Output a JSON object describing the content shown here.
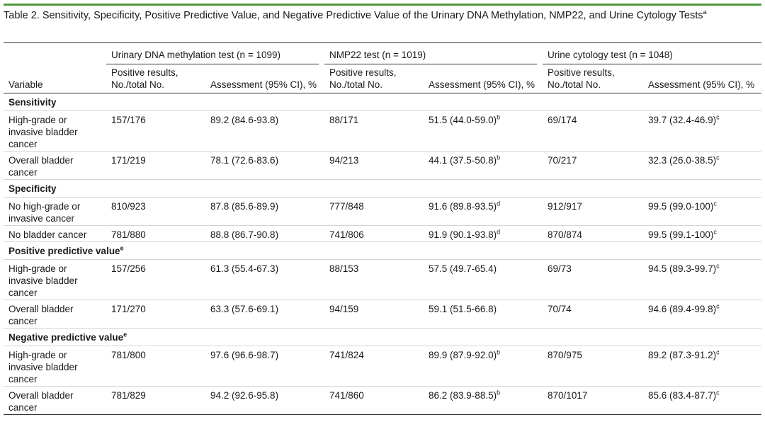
{
  "title": {
    "text": "Table 2. Sensitivity, Specificity, Positive Predictive Value, and Negative Predictive Value of the Urinary DNA Methylation, NMP22, and Urine Cytology Tests",
    "footnote": "a"
  },
  "header": {
    "variable": "Variable",
    "groups": [
      "Urinary DNA methylation test (n = 1099)",
      "NMP22 test (n = 1019)",
      "Urine cytology test (n = 1048)"
    ],
    "positive": "Positive results, No./total No.",
    "assessment": "Assessment (95% CI), %"
  },
  "sections": [
    {
      "label": "Sensitivity",
      "sup": "",
      "rows": [
        {
          "variable": "High-grade or invasive bladder cancer",
          "c": [
            {
              "v": "157/176",
              "s": ""
            },
            {
              "v": "89.2 (84.6-93.8)",
              "s": ""
            },
            {
              "v": "88/171",
              "s": ""
            },
            {
              "v": "51.5 (44.0-59.0)",
              "s": "b"
            },
            {
              "v": "69/174",
              "s": ""
            },
            {
              "v": "39.7 (32.4-46.9)",
              "s": "c"
            }
          ]
        },
        {
          "variable": "Overall bladder cancer",
          "c": [
            {
              "v": "171/219",
              "s": ""
            },
            {
              "v": "78.1 (72.6-83.6)",
              "s": ""
            },
            {
              "v": "94/213",
              "s": ""
            },
            {
              "v": "44.1 (37.5-50.8)",
              "s": "b"
            },
            {
              "v": "70/217",
              "s": ""
            },
            {
              "v": "32.3 (26.0-38.5)",
              "s": "c"
            }
          ]
        }
      ]
    },
    {
      "label": "Specificity",
      "sup": "",
      "rows": [
        {
          "variable": "No high-grade or invasive cancer",
          "c": [
            {
              "v": "810/923",
              "s": ""
            },
            {
              "v": "87.8 (85.6-89.9)",
              "s": ""
            },
            {
              "v": "777/848",
              "s": ""
            },
            {
              "v": "91.6 (89.8-93.5)",
              "s": "d"
            },
            {
              "v": "912/917",
              "s": ""
            },
            {
              "v": "99.5 (99.0-100)",
              "s": "c"
            }
          ]
        },
        {
          "variable": "No bladder cancer",
          "c": [
            {
              "v": "781/880",
              "s": ""
            },
            {
              "v": "88.8 (86.7-90.8)",
              "s": ""
            },
            {
              "v": "741/806",
              "s": ""
            },
            {
              "v": "91.9 (90.1-93.8)",
              "s": "d"
            },
            {
              "v": "870/874",
              "s": ""
            },
            {
              "v": "99.5 (99.1-100)",
              "s": "c"
            }
          ]
        }
      ]
    },
    {
      "label": "Positive predictive value",
      "sup": "e",
      "rows": [
        {
          "variable": "High-grade or invasive bladder cancer",
          "c": [
            {
              "v": "157/256",
              "s": ""
            },
            {
              "v": "61.3 (55.4-67.3)",
              "s": ""
            },
            {
              "v": "88/153",
              "s": ""
            },
            {
              "v": "57.5 (49.7-65.4)",
              "s": ""
            },
            {
              "v": "69/73",
              "s": ""
            },
            {
              "v": "94.5 (89.3-99.7)",
              "s": "c"
            }
          ]
        },
        {
          "variable": "Overall bladder cancer",
          "c": [
            {
              "v": "171/270",
              "s": ""
            },
            {
              "v": "63.3 (57.6-69.1)",
              "s": ""
            },
            {
              "v": "94/159",
              "s": ""
            },
            {
              "v": "59.1 (51.5-66.8)",
              "s": ""
            },
            {
              "v": "70/74",
              "s": ""
            },
            {
              "v": "94.6 (89.4-99.8)",
              "s": "c"
            }
          ]
        }
      ]
    },
    {
      "label": "Negative predictive value",
      "sup": "e",
      "rows": [
        {
          "variable": "High-grade or invasive bladder cancer",
          "c": [
            {
              "v": "781/800",
              "s": ""
            },
            {
              "v": "97.6 (96.6-98.7)",
              "s": ""
            },
            {
              "v": "741/824",
              "s": ""
            },
            {
              "v": "89.9 (87.9-92.0)",
              "s": "b"
            },
            {
              "v": "870/975",
              "s": ""
            },
            {
              "v": "89.2 (87.3-91.2)",
              "s": "c"
            }
          ]
        },
        {
          "variable": "Overall bladder cancer",
          "c": [
            {
              "v": "781/829",
              "s": ""
            },
            {
              "v": "94.2 (92.6-95.8)",
              "s": ""
            },
            {
              "v": "741/860",
              "s": ""
            },
            {
              "v": "86.2 (83.9-88.5)",
              "s": "b"
            },
            {
              "v": "870/1017",
              "s": ""
            },
            {
              "v": "85.6 (83.4-87.7)",
              "s": "c"
            }
          ]
        }
      ]
    }
  ]
}
